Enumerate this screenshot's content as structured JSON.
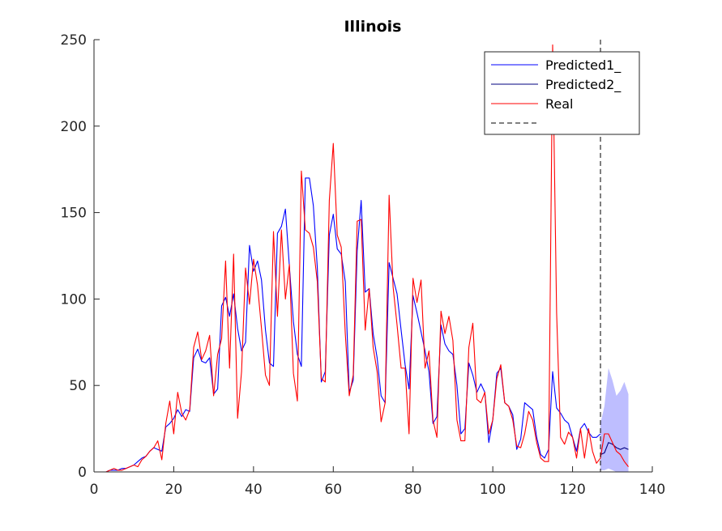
{
  "chart_data": {
    "type": "line",
    "title": "Illinois",
    "xlabel": "",
    "ylabel": "",
    "xlim": [
      0,
      140
    ],
    "ylim": [
      0,
      250
    ],
    "xticks": [
      0,
      20,
      40,
      60,
      80,
      100,
      120,
      140
    ],
    "yticks": [
      0,
      50,
      100,
      150,
      200,
      250
    ],
    "grid": false,
    "legend_position": "top-right",
    "legend": [
      "Predicted1_",
      "Predicted2_",
      "Real",
      ""
    ],
    "cutoff_x": 127,
    "colors": {
      "predicted1": "#0000ff",
      "predicted2": "#00007f",
      "real": "#ff0000",
      "band": "#b3b3ff",
      "cutoff": "#000000"
    },
    "series": [
      {
        "name": "Predicted1_",
        "x": [
          1,
          2,
          3,
          4,
          5,
          6,
          7,
          8,
          9,
          10,
          11,
          12,
          13,
          14,
          15,
          16,
          17,
          18,
          19,
          20,
          21,
          22,
          23,
          24,
          25,
          26,
          27,
          28,
          29,
          30,
          31,
          32,
          33,
          34,
          35,
          36,
          37,
          38,
          39,
          40,
          41,
          42,
          43,
          44,
          45,
          46,
          47,
          48,
          49,
          50,
          51,
          52,
          53,
          54,
          55,
          56,
          57,
          58,
          59,
          60,
          61,
          62,
          63,
          64,
          65,
          66,
          67,
          68,
          69,
          70,
          71,
          72,
          73,
          74,
          75,
          76,
          77,
          78,
          79,
          80,
          81,
          82,
          83,
          84,
          85,
          86,
          87,
          88,
          89,
          90,
          91,
          92,
          93,
          94,
          95,
          96,
          97,
          98,
          99,
          100,
          101,
          102,
          103,
          104,
          105,
          106,
          107,
          108,
          109,
          110,
          111,
          112,
          113,
          114,
          115,
          116,
          117,
          118,
          119,
          120,
          121,
          122,
          123,
          124,
          125,
          126,
          127
        ],
        "y": [
          0,
          0,
          0,
          1,
          1,
          1,
          2,
          2,
          3,
          4,
          6,
          8,
          9,
          12,
          14,
          13,
          12,
          26,
          28,
          31,
          36,
          32,
          36,
          35,
          66,
          71,
          64,
          63,
          66,
          45,
          48,
          96,
          101,
          90,
          103,
          83,
          70,
          75,
          131,
          116,
          122,
          111,
          82,
          63,
          61,
          138,
          142,
          152,
          119,
          87,
          68,
          61,
          170,
          170,
          154,
          118,
          52,
          58,
          137,
          149,
          129,
          126,
          110,
          46,
          53,
          128,
          157,
          104,
          106,
          80,
          66,
          44,
          40,
          121,
          112,
          103,
          82,
          62,
          48,
          102,
          92,
          81,
          70,
          58,
          28,
          32,
          85,
          74,
          70,
          68,
          50,
          22,
          25,
          63,
          56,
          46,
          51,
          46,
          17,
          30,
          57,
          60,
          40,
          38,
          33,
          13,
          19,
          40,
          38,
          36,
          20,
          10,
          8,
          13,
          58,
          37,
          34,
          30,
          28,
          20,
          12,
          25,
          28,
          23,
          20,
          20,
          22
        ]
      },
      {
        "name": "Predicted2_",
        "x": [
          127,
          128,
          129,
          130,
          131,
          132,
          133,
          134
        ],
        "y": [
          10,
          11,
          17,
          16,
          14,
          13,
          14,
          13
        ]
      },
      {
        "name": "Real",
        "x": [
          1,
          2,
          3,
          4,
          5,
          6,
          7,
          8,
          9,
          10,
          11,
          12,
          13,
          14,
          15,
          16,
          17,
          18,
          19,
          20,
          21,
          22,
          23,
          24,
          25,
          26,
          27,
          28,
          29,
          30,
          31,
          32,
          33,
          34,
          35,
          36,
          37,
          38,
          39,
          40,
          41,
          42,
          43,
          44,
          45,
          46,
          47,
          48,
          49,
          50,
          51,
          52,
          53,
          54,
          55,
          56,
          57,
          58,
          59,
          60,
          61,
          62,
          63,
          64,
          65,
          66,
          67,
          68,
          69,
          70,
          71,
          72,
          73,
          74,
          75,
          76,
          77,
          78,
          79,
          80,
          81,
          82,
          83,
          84,
          85,
          86,
          87,
          88,
          89,
          90,
          91,
          92,
          93,
          94,
          95,
          96,
          97,
          98,
          99,
          100,
          101,
          102,
          103,
          104,
          105,
          106,
          107,
          108,
          109,
          110,
          111,
          112,
          113,
          114,
          115,
          116,
          117,
          118,
          119,
          120,
          121,
          122,
          123,
          124,
          125,
          126,
          127,
          128,
          129,
          130,
          131,
          132,
          133,
          134
        ],
        "y": [
          0,
          0,
          0,
          1,
          2,
          1,
          1,
          2,
          3,
          4,
          3,
          7,
          9,
          12,
          14,
          18,
          7,
          28,
          41,
          22,
          46,
          34,
          30,
          36,
          72,
          81,
          65,
          70,
          79,
          44,
          68,
          77,
          122,
          60,
          126,
          31,
          58,
          118,
          97,
          123,
          108,
          83,
          56,
          50,
          139,
          90,
          140,
          100,
          120,
          57,
          41,
          174,
          140,
          138,
          130,
          110,
          54,
          52,
          157,
          190,
          137,
          130,
          80,
          44,
          56,
          145,
          146,
          82,
          106,
          72,
          58,
          29,
          40,
          160,
          107,
          85,
          60,
          60,
          22,
          112,
          98,
          111,
          60,
          70,
          30,
          20,
          93,
          80,
          90,
          76,
          30,
          18,
          18,
          72,
          86,
          42,
          40,
          46,
          22,
          30,
          54,
          62,
          40,
          38,
          30,
          15,
          14,
          22,
          35,
          30,
          17,
          8,
          6,
          6,
          247,
          92,
          20,
          16,
          23,
          20,
          8,
          25,
          8,
          25,
          12,
          5,
          8,
          22,
          22,
          17,
          12,
          10,
          6,
          3
        ]
      }
    ],
    "band": {
      "x": [
        127,
        128,
        129,
        130,
        131,
        132,
        133,
        134
      ],
      "upper": [
        28,
        38,
        60,
        53,
        44,
        47,
        52,
        45
      ],
      "lower": [
        1,
        1,
        2,
        1,
        0,
        0,
        0,
        0
      ]
    }
  }
}
